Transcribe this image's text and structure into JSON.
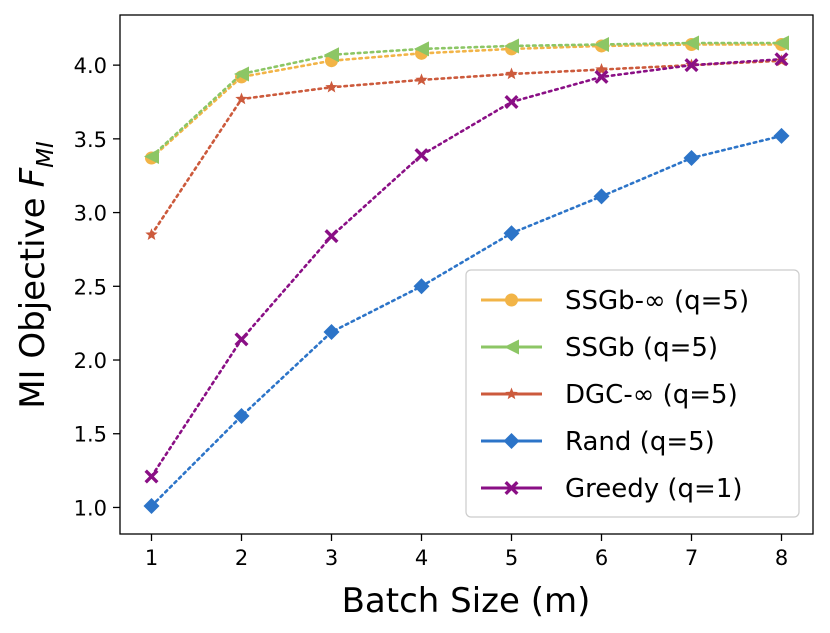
{
  "chart_data": {
    "type": "line",
    "title": "",
    "xlabel": "Batch Size (m)",
    "ylabel": "MI Objective",
    "ylabel_symbol": "F",
    "ylabel_subscript": "MI",
    "x": [
      1,
      2,
      3,
      4,
      5,
      6,
      7,
      8
    ],
    "xlim": [
      0.65,
      8.35
    ],
    "ylim": [
      0.82,
      4.34
    ],
    "xticks": [
      1,
      2,
      3,
      4,
      5,
      6,
      7,
      8
    ],
    "yticks": [
      1.0,
      1.5,
      2.0,
      2.5,
      3.0,
      3.5,
      4.0
    ],
    "ytick_labels": [
      "1.0",
      "1.5",
      "2.0",
      "2.5",
      "3.0",
      "3.5",
      "4.0"
    ],
    "grid": false,
    "legend_position": "lower-right",
    "series": [
      {
        "name": "SSGb-∞ (q=5)",
        "color": "#f2b447",
        "marker": "circle",
        "values": [
          3.37,
          3.92,
          4.03,
          4.08,
          4.11,
          4.13,
          4.14,
          4.14
        ]
      },
      {
        "name": "SSGb (q=5)",
        "color": "#8cc665",
        "marker": "triangle-left",
        "values": [
          3.38,
          3.94,
          4.07,
          4.11,
          4.13,
          4.14,
          4.15,
          4.15
        ]
      },
      {
        "name": "DGC-∞ (q=5)",
        "color": "#cc5a3c",
        "marker": "star",
        "values": [
          2.85,
          3.77,
          3.85,
          3.9,
          3.94,
          3.97,
          4.0,
          4.03
        ]
      },
      {
        "name": "Rand (q=5)",
        "color": "#2c74c8",
        "marker": "diamond",
        "values": [
          1.01,
          1.62,
          2.19,
          2.5,
          2.86,
          3.11,
          3.37,
          3.52
        ]
      },
      {
        "name": "Greedy (q=1)",
        "color": "#8a0f85",
        "marker": "x",
        "values": [
          1.21,
          2.14,
          2.84,
          3.39,
          3.75,
          3.92,
          4.0,
          4.04
        ]
      }
    ]
  }
}
